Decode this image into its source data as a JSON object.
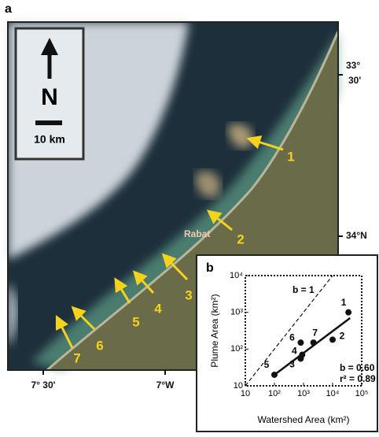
{
  "panel_a": {
    "label": "a",
    "north": "N",
    "scale": "10 km",
    "city": "Rabat",
    "sites": [
      "1",
      "2",
      "3",
      "4",
      "5",
      "6",
      "7"
    ],
    "lat_labels": [
      "33°",
      "30'",
      "34°N"
    ],
    "lon_labels": [
      "7° 30'",
      "7°W"
    ]
  },
  "chart_data": {
    "type": "scatter",
    "panel_label": "b",
    "x_label": "Watershed Area (km²)",
    "y_label": "Plume Area (km²)",
    "xlog": true,
    "ylog": true,
    "xlim": [
      10,
      100000
    ],
    "ylim": [
      10,
      10000
    ],
    "xticks": [
      10,
      {
        "value": 100,
        "label": "10²"
      },
      {
        "value": 1000,
        "label": "10³"
      },
      {
        "value": 10000,
        "label": "10⁴"
      },
      {
        "value": 100000,
        "label": "10⁵"
      }
    ],
    "yticks": [
      10,
      {
        "value": 100,
        "label": "10²"
      },
      {
        "value": 1000,
        "label": "10³"
      },
      {
        "value": 10000,
        "label": "10⁴"
      }
    ],
    "labels": [
      "1",
      "2",
      "3",
      "4",
      "5",
      "6",
      "7"
    ],
    "x": [
      35000,
      10000,
      800,
      900,
      100,
      800,
      2200
    ],
    "y": [
      1000,
      180,
      55,
      70,
      20,
      150,
      150
    ],
    "color": "#111111",
    "reference_line": {
      "x": [
        10,
        10000
      ],
      "y": [
        10,
        10000
      ]
    },
    "fit_line": {
      "x": [
        100,
        40000
      ],
      "y": [
        20,
        700
      ]
    },
    "annotations": [
      "b = 1",
      "b = 0.60",
      "r² = 0.89"
    ]
  }
}
